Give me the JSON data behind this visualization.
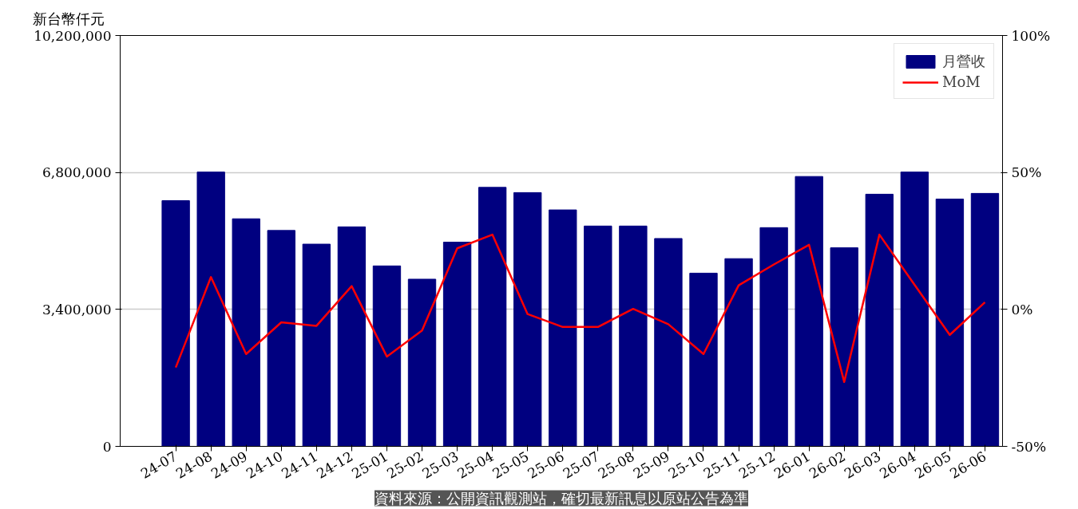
{
  "chart_data": {
    "type": "bar",
    "ylabel": "新台幣仟元",
    "categories": [
      "24-07",
      "24-08",
      "24-09",
      "24-10",
      "24-11",
      "24-12",
      "25-01",
      "25-02",
      "25-03",
      "25-04",
      "25-05",
      "25-06",
      "25-07",
      "25-08",
      "25-09",
      "25-10",
      "25-11",
      "25-12",
      "26-01",
      "26-02",
      "26-03",
      "26-04",
      "26-05",
      "26-06"
    ],
    "series": [
      {
        "name": "月營收",
        "color": "#000080",
        "values": [
          6100000,
          6810000,
          5650000,
          5360000,
          5020000,
          5450000,
          4480000,
          4150000,
          5070000,
          6430000,
          6300000,
          5870000,
          5470000,
          5470000,
          5160000,
          4300000,
          4660000,
          5430000,
          6700000,
          4930000,
          6260000,
          6810000,
          6140000,
          6280000
        ]
      },
      {
        "name": "MoM",
        "type": "line",
        "axis": "y2",
        "color": "#ff0000",
        "values": [
          -21.2,
          11.8,
          -16.3,
          -4.7,
          -6.0,
          8.5,
          -17.2,
          -7.7,
          22.3,
          27.3,
          -1.7,
          -6.4,
          -6.4,
          0.2,
          -5.4,
          -16.3,
          8.8,
          16.4,
          23.6,
          -26.5,
          27.3,
          9.0,
          -9.3,
          2.6
        ]
      }
    ],
    "ylim": [
      0,
      10200000
    ],
    "yticks": [
      {
        "value": 0,
        "label": "0"
      },
      {
        "value": 3400000,
        "label": "3,400,000"
      },
      {
        "value": 6800000,
        "label": "6,800,000"
      },
      {
        "value": 10200000,
        "label": "10,200,000"
      }
    ],
    "y2lim": [
      -50,
      100
    ],
    "y2ticks": [
      {
        "value": -50,
        "label": "-50%"
      },
      {
        "value": 0,
        "label": "0%"
      },
      {
        "value": 50,
        "label": "50%"
      },
      {
        "value": 100,
        "label": "100%"
      }
    ],
    "grid": "y",
    "legend": "top right",
    "marker": "none",
    "line_style": "solid",
    "annotations": [
      "資料來源：公開資訊觀測站，確切最新訊息以原站公告為準"
    ]
  }
}
